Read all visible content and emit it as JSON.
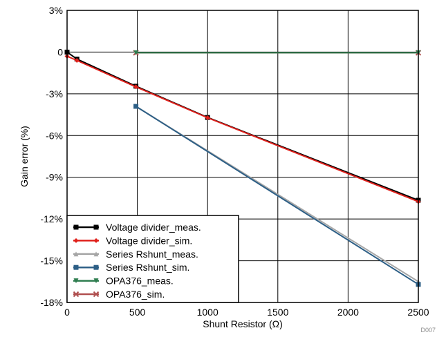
{
  "chart_data": {
    "type": "line",
    "title": "",
    "xlabel": "Shunt Resistor (Ω)",
    "ylabel": "Gain error (%)",
    "xlim": [
      0,
      2500
    ],
    "ylim": [
      -18,
      3
    ],
    "xticks": [
      0,
      500,
      1000,
      1500,
      2000,
      2500
    ],
    "xtick_labels": [
      "0",
      "500",
      "1000",
      "1500",
      "2000",
      "2500"
    ],
    "yticks": [
      3,
      0,
      -3,
      -6,
      -9,
      -12,
      -15,
      -18
    ],
    "ytick_labels": [
      "3%",
      "0",
      "-3%",
      "-6%",
      "-9%",
      "-12%",
      "-15%",
      "-18%"
    ],
    "grid": true,
    "legend_position": "bottom-left",
    "footnote": "D007",
    "series": [
      {
        "name": "Voltage divider_meas.",
        "color": "#000000",
        "marker": "square",
        "x": [
          0,
          70,
          490,
          1000,
          2500
        ],
        "y": [
          0,
          -0.5,
          -2.45,
          -4.7,
          -10.65
        ]
      },
      {
        "name": "Voltage divider_sim.",
        "color": "#e0201b",
        "marker": "diamond",
        "x": [
          0,
          70,
          490,
          1000,
          2500
        ],
        "y": [
          -0.3,
          -0.6,
          -2.5,
          -4.72,
          -10.75
        ]
      },
      {
        "name": "Series Rshunt_meas.",
        "color": "#a6a6a6",
        "marker": "triangle",
        "x": [
          490,
          2500
        ],
        "y": [
          -3.9,
          -16.5
        ]
      },
      {
        "name": "Series Rshunt_sim.",
        "color": "#2d5f86",
        "marker": "square",
        "x": [
          490,
          2500
        ],
        "y": [
          -3.9,
          -16.7
        ]
      },
      {
        "name": "OPA376_meas.",
        "color": "#2e7d4f",
        "marker": "triangle-down",
        "x": [
          490,
          2500
        ],
        "y": [
          -0.05,
          -0.05
        ]
      },
      {
        "name": "OPA376_sim.",
        "color": "#b05050",
        "marker": "x",
        "x": [
          490,
          2500
        ],
        "y": [
          -0.05,
          -0.05
        ]
      }
    ]
  }
}
